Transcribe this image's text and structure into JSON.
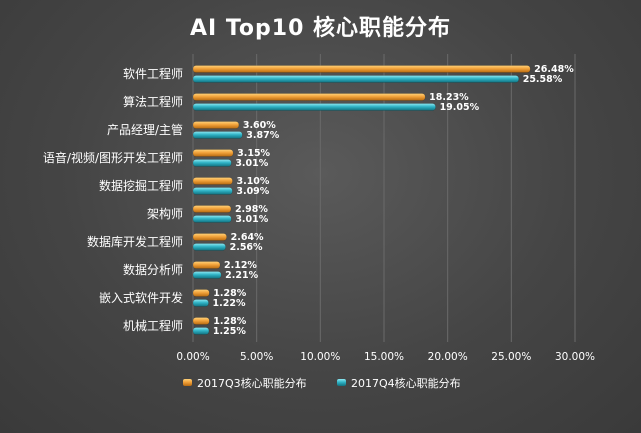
{
  "chart_data": {
    "type": "bar",
    "orientation": "horizontal",
    "title": "AI Top10 核心职能分布",
    "categories": [
      "软件工程师",
      "算法工程师",
      "产品经理/主管",
      "语音/视频/图形开发工程师",
      "数据挖掘工程师",
      "架构师",
      "数据库开发工程师",
      "数据分析师",
      "嵌入式软件开发",
      "机械工程师"
    ],
    "series": [
      {
        "name": "2017Q3核心职能分布",
        "values": [
          26.48,
          18.23,
          3.6,
          3.15,
          3.1,
          2.98,
          2.64,
          2.12,
          1.28,
          1.28
        ],
        "labels": [
          "26.48%",
          "18.23%",
          "3.60%",
          "3.15%",
          "3.10%",
          "2.98%",
          "2.64%",
          "2.12%",
          "1.28%",
          "1.28%"
        ],
        "color": "#f0a030"
      },
      {
        "name": "2017Q4核心职能分布",
        "values": [
          25.58,
          19.05,
          3.87,
          3.01,
          3.09,
          3.01,
          2.56,
          2.21,
          1.22,
          1.25
        ],
        "labels": [
          "25.58%",
          "19.05%",
          "3.87%",
          "3.01%",
          "3.09%",
          "3.01%",
          "2.56%",
          "2.21%",
          "1.22%",
          "1.25%"
        ],
        "color": "#2fb8c8"
      }
    ],
    "xlim": [
      0,
      30
    ],
    "xticks": [
      0,
      5,
      10,
      15,
      20,
      25,
      30
    ],
    "xtick_labels": [
      "0.00%",
      "5.00%",
      "10.00%",
      "15.00%",
      "20.00%",
      "25.00%",
      "30.00%"
    ],
    "grid": true,
    "legend_position": "bottom",
    "background_color": "#454545"
  }
}
